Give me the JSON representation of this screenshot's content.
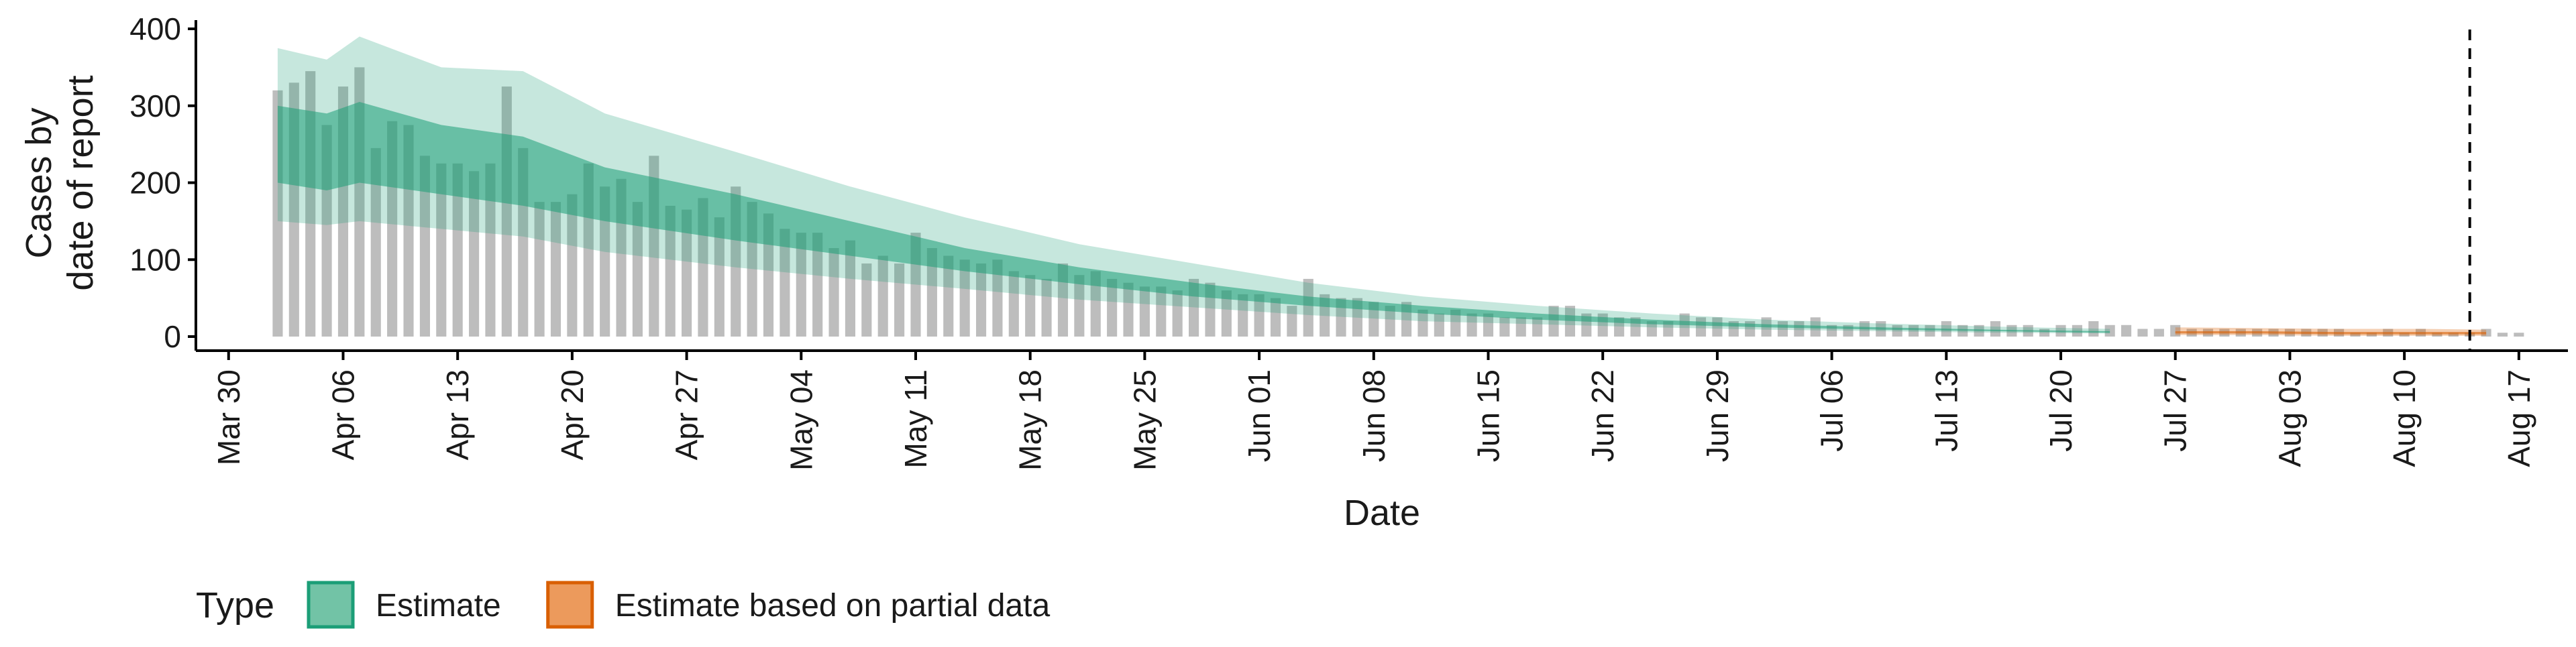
{
  "chart_data": {
    "type": "bar",
    "xlabel": "Date",
    "ylabel_lines": [
      "Cases by",
      "date of report"
    ],
    "ylim": [
      0,
      400
    ],
    "y_ticks": [
      0,
      100,
      200,
      300,
      400
    ],
    "x_range": [
      "2020-03-28",
      "2020-08-20"
    ],
    "x_ticks": [
      {
        "date": "2020-03-30",
        "label": "Mar 30"
      },
      {
        "date": "2020-04-06",
        "label": "Apr 06"
      },
      {
        "date": "2020-04-13",
        "label": "Apr 13"
      },
      {
        "date": "2020-04-20",
        "label": "Apr 20"
      },
      {
        "date": "2020-04-27",
        "label": "Apr 27"
      },
      {
        "date": "2020-05-04",
        "label": "May 04"
      },
      {
        "date": "2020-05-11",
        "label": "May 11"
      },
      {
        "date": "2020-05-18",
        "label": "May 18"
      },
      {
        "date": "2020-05-25",
        "label": "May 25"
      },
      {
        "date": "2020-06-01",
        "label": "Jun 01"
      },
      {
        "date": "2020-06-08",
        "label": "Jun 08"
      },
      {
        "date": "2020-06-15",
        "label": "Jun 15"
      },
      {
        "date": "2020-06-22",
        "label": "Jun 22"
      },
      {
        "date": "2020-06-29",
        "label": "Jun 29"
      },
      {
        "date": "2020-07-06",
        "label": "Jul 06"
      },
      {
        "date": "2020-07-13",
        "label": "Jul 13"
      },
      {
        "date": "2020-07-20",
        "label": "Jul 20"
      },
      {
        "date": "2020-07-27",
        "label": "Jul 27"
      },
      {
        "date": "2020-08-03",
        "label": "Aug 03"
      },
      {
        "date": "2020-08-10",
        "label": "Aug 10"
      },
      {
        "date": "2020-08-17",
        "label": "Aug 17"
      }
    ],
    "bars_start_date": "2020-04-02",
    "observed_cases": [
      320,
      330,
      345,
      275,
      325,
      350,
      245,
      280,
      275,
      235,
      225,
      225,
      215,
      225,
      325,
      245,
      175,
      175,
      185,
      225,
      195,
      205,
      175,
      235,
      170,
      165,
      180,
      155,
      195,
      175,
      160,
      140,
      135,
      135,
      115,
      125,
      95,
      105,
      95,
      135,
      115,
      105,
      100,
      95,
      100,
      85,
      80,
      75,
      95,
      80,
      85,
      75,
      70,
      65,
      65,
      60,
      75,
      70,
      60,
      55,
      55,
      50,
      40,
      75,
      55,
      50,
      50,
      45,
      40,
      45,
      35,
      30,
      35,
      30,
      30,
      25,
      25,
      25,
      40,
      40,
      30,
      30,
      25,
      25,
      20,
      20,
      30,
      25,
      25,
      20,
      20,
      25,
      20,
      20,
      25,
      15,
      15,
      20,
      20,
      15,
      15,
      15,
      20,
      15,
      15,
      20,
      15,
      15,
      10,
      15,
      15,
      20,
      15,
      15,
      10,
      10,
      15,
      10,
      10,
      10,
      10,
      10,
      10,
      10,
      10,
      10,
      10,
      5,
      5,
      10,
      5,
      10,
      5,
      5,
      5,
      10,
      5,
      5
    ],
    "estimate": {
      "name": "Estimate",
      "color": "#1b9e77",
      "start_date": "2020-04-02",
      "x_days": [
        0,
        3,
        5,
        10,
        15,
        20,
        28,
        35,
        42,
        49,
        56,
        63,
        70,
        77,
        84,
        91,
        98,
        105,
        112
      ],
      "lower90": [
        150,
        145,
        150,
        140,
        130,
        110,
        90,
        75,
        62,
        48,
        38,
        28,
        20,
        16,
        12,
        9,
        7,
        5,
        4
      ],
      "lower50": [
        200,
        190,
        200,
        185,
        170,
        150,
        125,
        105,
        85,
        68,
        52,
        40,
        30,
        22,
        16,
        12,
        9,
        7,
        5
      ],
      "upper50": [
        300,
        290,
        305,
        275,
        260,
        220,
        185,
        150,
        115,
        90,
        70,
        52,
        40,
        30,
        22,
        16,
        12,
        9,
        7
      ],
      "upper90": [
        375,
        360,
        390,
        350,
        345,
        290,
        240,
        195,
        155,
        120,
        95,
        70,
        52,
        40,
        30,
        22,
        17,
        13,
        10
      ]
    },
    "estimate_partial": {
      "name": "Estimate based on partial data",
      "color": "#d95f02",
      "start_date": "2020-07-27",
      "x_days": [
        0,
        5,
        10,
        15,
        19
      ],
      "lower90": [
        2,
        2,
        1,
        1,
        1
      ],
      "lower50": [
        4,
        4,
        3,
        3,
        3
      ],
      "upper50": [
        7,
        7,
        6,
        6,
        6
      ],
      "upper90": [
        12,
        11,
        10,
        10,
        9
      ]
    },
    "vline_date": "2020-08-14",
    "legend": {
      "title": "Type",
      "position": "bottom-left",
      "entries": [
        {
          "label": "Estimate",
          "fill": "#72c3a6",
          "border": "#1b9e77"
        },
        {
          "label": "Estimate based on partial data",
          "fill": "#ec9a5c",
          "border": "#d95f02"
        }
      ]
    },
    "colors": {
      "bars": "#bdbdbd",
      "estimate": "#1b9e77",
      "partial": "#d95f02",
      "axis": "#000000"
    },
    "grid": false
  }
}
